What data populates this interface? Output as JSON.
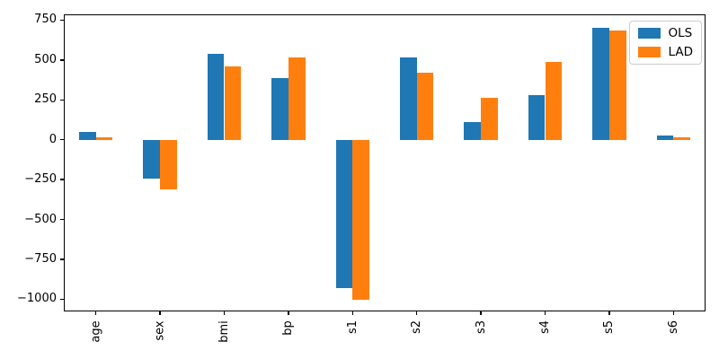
{
  "chart_data": {
    "type": "bar",
    "title": "",
    "xlabel": "",
    "ylabel": "",
    "categories": [
      "age",
      "sex",
      "bmi",
      "bp",
      "s1",
      "s2",
      "s3",
      "s4",
      "s5",
      "s6"
    ],
    "series": [
      {
        "name": "OLS",
        "color": "#1f77b4",
        "values": [
          47,
          -245,
          537,
          386,
          -930,
          516,
          112,
          278,
          699,
          26
        ]
      },
      {
        "name": "LAD",
        "color": "#ff7f0e",
        "values": [
          14,
          -310,
          462,
          516,
          -1003,
          420,
          261,
          486,
          686,
          13
        ]
      }
    ],
    "ylim": [
      -1076,
      786
    ],
    "yticks": [
      {
        "value": 750,
        "label": "750"
      },
      {
        "value": 500,
        "label": "500"
      },
      {
        "value": 250,
        "label": "250"
      },
      {
        "value": 0,
        "label": "0"
      },
      {
        "value": -250,
        "label": "−250"
      },
      {
        "value": -500,
        "label": "−500"
      },
      {
        "value": -750,
        "label": "−750"
      },
      {
        "value": -1000,
        "label": "−1000"
      }
    ],
    "grid": false,
    "legend_position": "upper right",
    "x_tick_label_rotation": 90
  },
  "legend": {
    "items": [
      {
        "label": "OLS",
        "color": "#1f77b4"
      },
      {
        "label": "LAD",
        "color": "#ff7f0e"
      }
    ]
  }
}
